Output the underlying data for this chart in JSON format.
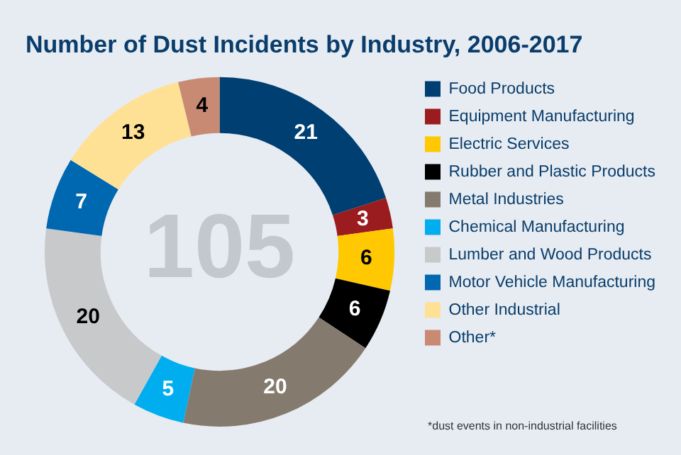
{
  "chart_data": {
    "type": "donut",
    "title": "Number of Dust Incidents by Industry, 2006-2017",
    "categories": [
      "Food Products",
      "Equipment Manufacturing",
      "Electric Services",
      "Rubber and Plastic Products",
      "Metal Industries",
      "Chemical Manufacturing",
      "Lumber and Wood Products",
      "Motor Vehicle Manufacturing",
      "Other Industrial",
      "Other*"
    ],
    "values": [
      21,
      3,
      6,
      6,
      20,
      5,
      20,
      7,
      13,
      4
    ],
    "colors": [
      "#003f72",
      "#9b1c1f",
      "#ffc800",
      "#000000",
      "#857a6e",
      "#00aeef",
      "#c8c9cb",
      "#0067b1",
      "#ffe196",
      "#c98a74"
    ],
    "data_labels": true,
    "legend": "right",
    "annotations": [
      "105",
      "*dust events in non-industrial facilities"
    ]
  }
}
